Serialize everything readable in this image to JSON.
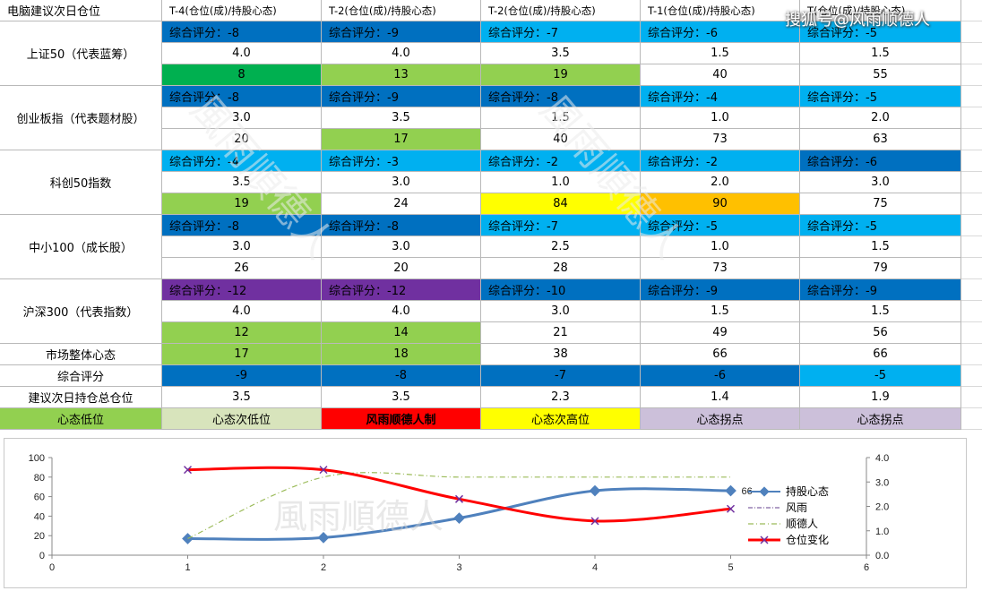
{
  "watermark_brand": "搜狐号@风雨顺德人",
  "watermark_text": "風雨順德人",
  "colors": {
    "blue_dark": "#0563c1",
    "blue_mid": "#0070c0",
    "blue_light": "#00b0f0",
    "green_dark": "#00b050",
    "green_light": "#92d050",
    "yellow": "#ffff00",
    "orange": "#ffc000",
    "purple": "#7030a0",
    "red": "#ff0000",
    "pale_green": "#d8e4bc",
    "lavender": "#ccc0da"
  },
  "header": [
    "电脑建议次日仓位",
    "T-4(仓位(成)/持股心态)",
    "T-2(仓位(成)/持股心态)",
    "T-2(仓位(成)/持股心态)",
    "T-1(仓位(成)/持股心态)",
    "T(仓位(成)/持股心态)"
  ],
  "groups": [
    {
      "label": "上证50（代表蓝筹）",
      "scores": [
        "综合评分：-8",
        "综合评分：-9",
        "综合评分：-7",
        "综合评分：-6",
        "综合评分：-5"
      ],
      "score_colors": [
        "blue_mid",
        "blue_mid",
        "blue_light",
        "blue_light",
        "blue_light"
      ],
      "positions": [
        "4.0",
        "4.0",
        "3.5",
        "1.5",
        "1.5"
      ],
      "moods": [
        "8",
        "13",
        "19",
        "40",
        "55"
      ],
      "mood_colors": [
        "green_dark",
        "green_light",
        "green_light",
        "",
        ""
      ]
    },
    {
      "label": "创业板指（代表题材股）",
      "scores": [
        "综合评分：-8",
        "综合评分：-9",
        "综合评分：-8",
        "综合评分：-4",
        "综合评分：-5"
      ],
      "score_colors": [
        "blue_mid",
        "blue_mid",
        "blue_mid",
        "blue_light",
        "blue_light"
      ],
      "positions": [
        "3.0",
        "3.5",
        "1.5",
        "1.0",
        "2.0"
      ],
      "moods": [
        "20",
        "17",
        "40",
        "73",
        "63"
      ],
      "mood_colors": [
        "",
        "green_light",
        "",
        "",
        ""
      ]
    },
    {
      "label": "科创50指数",
      "scores": [
        "综合评分：-4",
        "综合评分：-3",
        "综合评分：-2",
        "综合评分：-2",
        "综合评分：-6"
      ],
      "score_colors": [
        "blue_light",
        "blue_light",
        "blue_light",
        "blue_light",
        "blue_mid"
      ],
      "positions": [
        "3.5",
        "3.0",
        "1.0",
        "2.0",
        "3.0"
      ],
      "moods": [
        "19",
        "24",
        "84",
        "90",
        "75"
      ],
      "mood_colors": [
        "green_light",
        "",
        "yellow",
        "orange",
        ""
      ]
    },
    {
      "label": "中小100（成长股）",
      "scores": [
        "综合评分：-8",
        "综合评分：-8",
        "综合评分：-7",
        "综合评分：-5",
        "综合评分：-5"
      ],
      "score_colors": [
        "blue_mid",
        "blue_mid",
        "blue_light",
        "blue_light",
        "blue_light"
      ],
      "positions": [
        "3.0",
        "3.0",
        "2.5",
        "1.0",
        "1.5"
      ],
      "moods": [
        "26",
        "20",
        "28",
        "73",
        "79"
      ],
      "mood_colors": [
        "",
        "",
        "",
        "",
        ""
      ]
    },
    {
      "label": "沪深300（代表指数）",
      "scores": [
        "综合评分：-12",
        "综合评分：-12",
        "综合评分：-10",
        "综合评分：-9",
        "综合评分：-9"
      ],
      "score_colors": [
        "purple",
        "purple",
        "blue_mid",
        "blue_mid",
        "blue_mid"
      ],
      "positions": [
        "4.0",
        "4.0",
        "3.0",
        "1.5",
        "1.5"
      ],
      "moods": [
        "12",
        "14",
        "21",
        "49",
        "56"
      ],
      "mood_colors": [
        "green_light",
        "green_light",
        "",
        "",
        ""
      ]
    }
  ],
  "summary_rows": [
    {
      "label": "市场整体心态",
      "values": [
        "17",
        "18",
        "38",
        "66",
        "66"
      ],
      "colors": [
        "green_light",
        "green_light",
        "",
        "",
        ""
      ]
    },
    {
      "label": "综合评分",
      "values": [
        "-9",
        "-8",
        "-7",
        "-6",
        "-5"
      ],
      "colors": [
        "blue_mid",
        "blue_mid",
        "blue_mid",
        "blue_mid",
        "blue_light"
      ]
    },
    {
      "label": "建议次日持仓总仓位",
      "values": [
        "3.5",
        "3.5",
        "2.3",
        "1.4",
        "1.9"
      ],
      "colors": [
        "",
        "",
        "",
        "",
        ""
      ]
    }
  ],
  "legend_row": [
    {
      "label": "心态低位",
      "color": "green_light",
      "bold": false,
      "text_color": "#000000"
    },
    {
      "label": "心态次低位",
      "color": "pale_green",
      "bold": false,
      "text_color": "#000000"
    },
    {
      "label": "风雨顺德人制",
      "color": "red",
      "bold": true,
      "text_color": "#000000"
    },
    {
      "label": "心态次高位",
      "color": "yellow",
      "bold": false,
      "text_color": "#000000"
    },
    {
      "label": "心态拐点",
      "color": "lavender",
      "bold": false,
      "text_color": "#000000"
    },
    {
      "label": "心态拐点",
      "color": "lavender",
      "bold": false,
      "text_color": "#000000"
    }
  ],
  "chart_data": {
    "type": "line",
    "x_ticks": [
      "0",
      "1",
      "2",
      "3",
      "4",
      "5",
      "6"
    ],
    "y_left_ticks": [
      "0",
      "20",
      "40",
      "60",
      "80",
      "100"
    ],
    "y_right_ticks": [
      "0.0",
      "1.0",
      "2.0",
      "3.0",
      "4.0"
    ],
    "xlim": [
      0,
      6
    ],
    "ylim_left": [
      0,
      100
    ],
    "ylim_right": [
      0,
      4
    ],
    "data_label": "66",
    "series": [
      {
        "name": "持股心态",
        "axis": "left",
        "color": "#4f81bd",
        "x": [
          1,
          2,
          3,
          4,
          5
        ],
        "y": [
          17,
          18,
          38,
          66,
          66
        ]
      },
      {
        "name": "风雨",
        "axis": "left",
        "color": "#8064a2",
        "x": [],
        "y": []
      },
      {
        "name": "顺德人",
        "axis": "left",
        "color": "#9bbb59",
        "x": [
          1,
          2,
          3,
          4,
          5
        ],
        "y": [
          17,
          80,
          80,
          80,
          80
        ]
      },
      {
        "name": "仓位变化",
        "axis": "right",
        "color": "#ff0000",
        "x": [
          1,
          2,
          3,
          4,
          5
        ],
        "y": [
          3.5,
          3.5,
          2.3,
          1.4,
          1.9
        ]
      }
    ]
  }
}
